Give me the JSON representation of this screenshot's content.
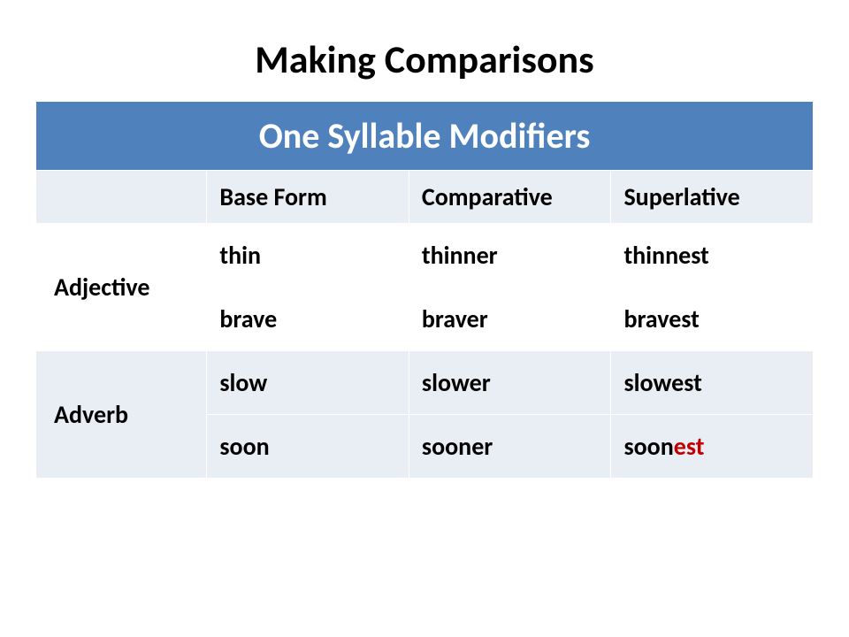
{
  "title": "Making Comparisons",
  "banner": "One Syllable Modifiers",
  "columns": {
    "label": "",
    "base": "Base Form",
    "comparative": "Comparative",
    "superlative": "Superlative"
  },
  "rows": [
    {
      "label": "Adjective",
      "base": "thin",
      "comp": "thinner",
      "sup": "thinnest",
      "sup_hl": ""
    },
    {
      "label": "",
      "base": "brave",
      "comp": "braver",
      "sup": "bravest",
      "sup_hl": ""
    },
    {
      "label": "Adverb",
      "base": "slow",
      "comp": "slower",
      "sup": "slowest",
      "sup_hl": ""
    },
    {
      "label": "",
      "base": "soon",
      "comp": "sooner",
      "sup": "soon",
      "sup_hl": "est"
    }
  ],
  "styling": {
    "type": "table",
    "slide_background": "#ffffff",
    "title_fontsize": 44,
    "title_color": "#000000",
    "banner_background": "#4f81bd",
    "banner_text_color": "#ffffff",
    "banner_fontsize": 40,
    "header_background": "#e9edf4",
    "header_fontsize": 28,
    "row_alt_background": "#e9edf4",
    "row_background": "#ffffff",
    "cell_fontsize": 28,
    "cell_font_weight": "bold",
    "highlight_color": "#c00000",
    "border_color": "#ffffff",
    "font_family": "Calibri",
    "column_widths_pct": [
      22,
      26,
      26,
      26
    ]
  }
}
